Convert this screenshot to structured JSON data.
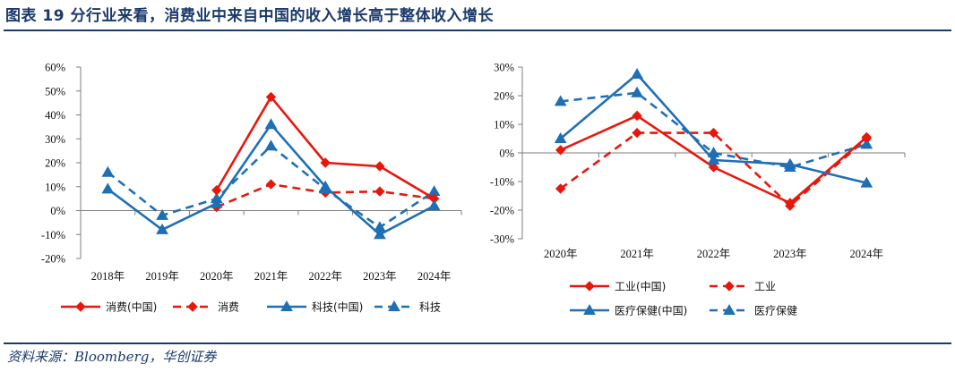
{
  "header": {
    "title": "图表 19   分行业来看，消费业中来自中国的收入增长高于整体收入增长"
  },
  "footer": {
    "source": "资料来源：Bloomberg，华创证券"
  },
  "colors": {
    "red": "#e8170c",
    "blue": "#1f6fb5",
    "title": "#1b3a6b",
    "axis": "#7f7f7f"
  },
  "chart_data": [
    {
      "type": "line",
      "categories": [
        "2018年",
        "2019年",
        "2020年",
        "2021年",
        "2022年",
        "2023年",
        "2024年"
      ],
      "ylim": [
        -20,
        60
      ],
      "yticks": [
        -20,
        -10,
        0,
        10,
        20,
        30,
        40,
        50,
        60
      ],
      "ytick_labels": [
        "-20%",
        "-10%",
        "0%",
        "10%",
        "20%",
        "30%",
        "40%",
        "50%",
        "60%"
      ],
      "grid": false,
      "legend_position": "bottom",
      "series": [
        {
          "name": "消费(中国)",
          "color": "#e8170c",
          "dashed": false,
          "marker": "diamond",
          "values": [
            null,
            null,
            8.5,
            47.5,
            20,
            18.5,
            5
          ]
        },
        {
          "name": "消费",
          "color": "#e8170c",
          "dashed": true,
          "marker": "diamond",
          "values": [
            null,
            null,
            1.5,
            11,
            7.5,
            8,
            5
          ]
        },
        {
          "name": "科技(中国)",
          "color": "#1f6fb5",
          "dashed": false,
          "marker": "triangle",
          "values": [
            9,
            -8,
            3,
            36,
            10,
            -10,
            2
          ]
        },
        {
          "name": "科技",
          "color": "#1f6fb5",
          "dashed": true,
          "marker": "triangle",
          "values": [
            16,
            -2,
            5,
            27,
            9,
            -7,
            8
          ]
        }
      ]
    },
    {
      "type": "line",
      "categories": [
        "2020年",
        "2021年",
        "2022年",
        "2023年",
        "2024年"
      ],
      "ylim": [
        -30,
        30
      ],
      "yticks": [
        -30,
        -20,
        -10,
        0,
        10,
        20,
        30
      ],
      "ytick_labels": [
        "-30%",
        "-20%",
        "-10%",
        "0%",
        "10%",
        "20%",
        "30%"
      ],
      "grid": false,
      "legend_position": "bottom",
      "series": [
        {
          "name": "工业(中国)",
          "color": "#e8170c",
          "dashed": false,
          "marker": "diamond",
          "values": [
            1,
            13,
            -5,
            -17.5,
            5.5
          ]
        },
        {
          "name": "工业",
          "color": "#e8170c",
          "dashed": true,
          "marker": "diamond",
          "values": [
            -12.5,
            7,
            7,
            -18.5,
            5
          ]
        },
        {
          "name": "医疗保健(中国)",
          "color": "#1f6fb5",
          "dashed": false,
          "marker": "triangle",
          "values": [
            5,
            27.5,
            -2.5,
            -4,
            -10.5
          ]
        },
        {
          "name": "医疗保健",
          "color": "#1f6fb5",
          "dashed": true,
          "marker": "triangle",
          "values": [
            18,
            21,
            0,
            -5,
            3
          ]
        }
      ]
    }
  ]
}
